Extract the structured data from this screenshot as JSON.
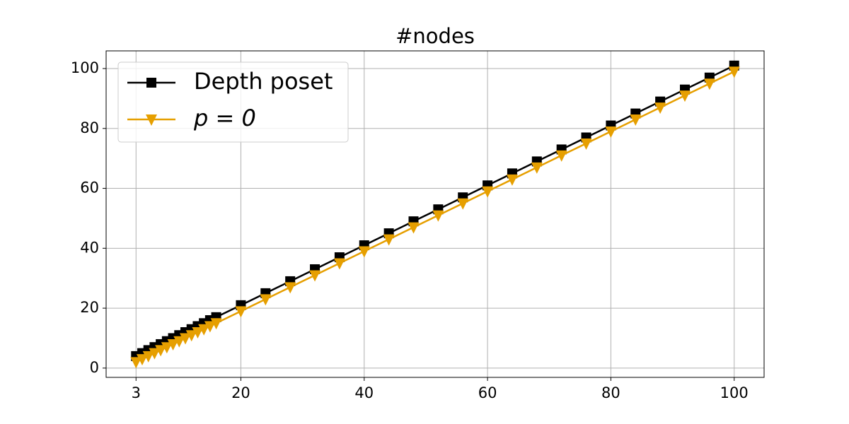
{
  "chart_data": {
    "type": "line",
    "title": "#nodes",
    "x": [
      3,
      4,
      5,
      6,
      7,
      8,
      9,
      10,
      11,
      12,
      13,
      14,
      15,
      16,
      20,
      24,
      28,
      32,
      36,
      40,
      44,
      48,
      52,
      56,
      60,
      64,
      68,
      72,
      76,
      80,
      84,
      88,
      92,
      96,
      100
    ],
    "series": [
      {
        "name": "Depth poset",
        "color": "#000000",
        "marker": "square",
        "values": [
          4,
          5,
          6,
          7,
          8,
          9,
          10,
          11,
          12,
          13,
          14,
          15,
          16,
          17,
          21,
          25,
          29,
          33,
          37,
          41,
          45,
          49,
          53,
          57,
          61,
          65,
          69,
          73,
          77,
          81,
          85,
          89,
          93,
          97,
          101
        ]
      },
      {
        "name": "p = 0",
        "color": "#e69f00",
        "marker": "triangle-down",
        "values": [
          2,
          3,
          4,
          5,
          6,
          7,
          8,
          9,
          10,
          11,
          12,
          13,
          14,
          15,
          19,
          23,
          27,
          31,
          35,
          39,
          43,
          47,
          51,
          55,
          59,
          63,
          67,
          71,
          75,
          79,
          83,
          87,
          91,
          95,
          99
        ]
      }
    ],
    "xlim": [
      -1.85,
      104.85
    ],
    "ylim": [
      -3.1,
      105.9
    ],
    "xticks": [
      3,
      20,
      40,
      60,
      80,
      100
    ],
    "yticks": [
      0,
      20,
      40,
      60,
      80,
      100
    ],
    "grid": true,
    "legend": "upper left"
  }
}
